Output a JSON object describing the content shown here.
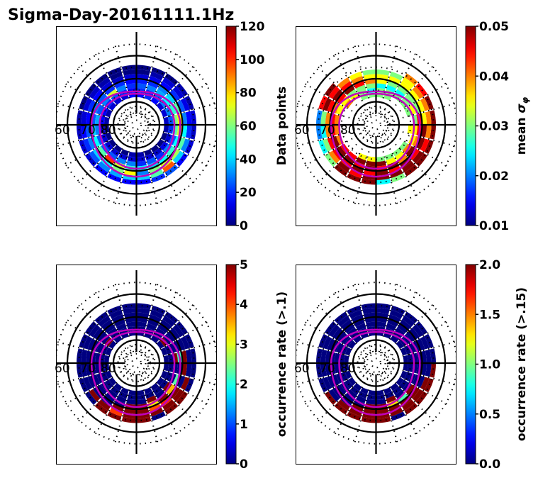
{
  "chart_data": {
    "type": "heatmap",
    "title": "Sigma-Day-20161111.1Hz",
    "projection": "polar (MLT vs magnetic latitude)",
    "grid": {
      "lat_circles_solid": [
        60,
        70,
        80
      ],
      "lat_circles_dotted": [
        55,
        65,
        75,
        85
      ],
      "lat_labels": [
        "60",
        "70",
        "80"
      ],
      "mlt_spokes_dotted_hours": 24
    },
    "mlt_bins": [
      0,
      1,
      2,
      3,
      4,
      5,
      6,
      7,
      8,
      9,
      10,
      11,
      12,
      13,
      14,
      15,
      16,
      17,
      18,
      19,
      20,
      21,
      22,
      23
    ],
    "lat_bins": [
      64,
      66,
      68,
      70,
      72,
      74,
      76
    ],
    "oval_contours": [
      {
        "name": "oval-inner",
        "color": "#bf00bf",
        "lat_at_mlt": {
          "0": 71,
          "6": 73.5,
          "12": 76.5,
          "18": 74
        }
      },
      {
        "name": "oval-outer",
        "color": "#bf00bf",
        "lat_at_mlt": {
          "0": 67.5,
          "6": 71,
          "12": 75.5,
          "18": 70.5
        }
      }
    ],
    "panels": [
      {
        "name": "data-points",
        "colorbar_label": "Data points",
        "vmin": 0,
        "vmax": 120,
        "ticks": [
          "0",
          "20",
          "40",
          "60",
          "80",
          "100",
          "120"
        ],
        "colormap": "jet",
        "values": [
          [
            15,
            40,
            30,
            45,
            20,
            10,
            5
          ],
          [
            20,
            55,
            60,
            40,
            25,
            10,
            0
          ],
          [
            25,
            95,
            70,
            45,
            20,
            8,
            0
          ],
          [
            15,
            40,
            65,
            50,
            30,
            12,
            0
          ],
          [
            10,
            30,
            55,
            45,
            25,
            10,
            0
          ],
          [
            8,
            20,
            45,
            70,
            55,
            20,
            5
          ],
          [
            10,
            15,
            30,
            75,
            60,
            25,
            8
          ],
          [
            5,
            12,
            25,
            55,
            50,
            30,
            10
          ],
          [
            5,
            10,
            20,
            40,
            45,
            30,
            10
          ],
          [
            0,
            10,
            15,
            30,
            35,
            25,
            15
          ],
          [
            0,
            5,
            12,
            20,
            30,
            20,
            20
          ],
          [
            0,
            0,
            10,
            18,
            25,
            20,
            15
          ],
          [
            0,
            0,
            10,
            15,
            20,
            15,
            15
          ],
          [
            0,
            0,
            8,
            20,
            30,
            20,
            10
          ],
          [
            0,
            5,
            10,
            20,
            70,
            25,
            10
          ],
          [
            0,
            8,
            15,
            25,
            30,
            20,
            10
          ],
          [
            0,
            10,
            20,
            30,
            25,
            15,
            5
          ],
          [
            5,
            10,
            15,
            25,
            35,
            15,
            5
          ],
          [
            8,
            15,
            25,
            40,
            30,
            10,
            0
          ],
          [
            10,
            20,
            30,
            45,
            25,
            10,
            0
          ],
          [
            10,
            25,
            40,
            55,
            25,
            10,
            0
          ],
          [
            15,
            30,
            45,
            100,
            25,
            10,
            0
          ],
          [
            15,
            35,
            60,
            70,
            30,
            10,
            0
          ],
          [
            15,
            40,
            75,
            50,
            30,
            10,
            5
          ]
        ]
      },
      {
        "name": "mean-sigma-phi",
        "colorbar_label": "mean σ_φ",
        "vmin": 0.01,
        "vmax": 0.05,
        "ticks": [
          "0.01",
          "0.02",
          "0.03",
          "0.04",
          "0.05"
        ],
        "colormap": "jet",
        "values": [
          [
            0.025,
            0.05,
            0.05,
            0.045,
            0.05,
            0.03,
            null
          ],
          [
            0.03,
            0.05,
            0.045,
            0.05,
            0.035,
            0.03,
            null
          ],
          [
            0.05,
            0.05,
            0.05,
            0.04,
            0.035,
            0.03,
            null
          ],
          [
            0.05,
            0.05,
            0.045,
            0.05,
            0.04,
            0.03,
            null
          ],
          [
            0.05,
            0.045,
            0.05,
            0.04,
            0.035,
            null,
            null
          ],
          [
            0.05,
            0.04,
            0.05,
            0.045,
            0.035,
            0.035,
            null
          ],
          [
            0.05,
            0.04,
            0.035,
            0.045,
            0.03,
            null,
            null
          ],
          [
            0.05,
            0.04,
            0.035,
            0.03,
            0.035,
            0.03,
            null
          ],
          [
            0.045,
            0.04,
            0.035,
            0.03,
            0.03,
            0.03,
            null
          ],
          [
            0.04,
            0.035,
            0.035,
            0.03,
            0.025,
            0.03,
            null
          ],
          [
            null,
            0.03,
            0.035,
            0.03,
            0.025,
            0.03,
            0.03
          ],
          [
            null,
            0.03,
            0.035,
            0.035,
            0.025,
            0.03,
            0.03
          ],
          [
            null,
            0.03,
            0.035,
            0.04,
            0.03,
            0.025,
            0.03
          ],
          [
            null,
            0.035,
            0.04,
            0.045,
            0.03,
            0.03,
            0.03
          ],
          [
            null,
            0.04,
            0.045,
            0.05,
            0.03,
            0.035,
            null
          ],
          [
            0.05,
            0.045,
            0.05,
            0.045,
            0.035,
            0.04,
            null
          ],
          [
            0.045,
            0.05,
            0.045,
            0.04,
            0.035,
            null,
            null
          ],
          [
            0.02,
            0.03,
            0.04,
            0.045,
            0.04,
            null,
            null
          ],
          [
            0.02,
            0.025,
            0.04,
            0.045,
            0.04,
            null,
            null
          ],
          [
            0.025,
            0.03,
            0.045,
            0.05,
            0.04,
            null,
            null
          ],
          [
            0.03,
            0.04,
            0.045,
            0.05,
            0.045,
            null,
            null
          ],
          [
            0.05,
            0.05,
            0.045,
            0.05,
            0.045,
            null,
            null
          ],
          [
            0.05,
            0.045,
            0.05,
            0.045,
            0.05,
            0.035,
            null
          ],
          [
            0.05,
            0.05,
            0.045,
            0.05,
            0.05,
            0.035,
            null
          ]
        ]
      },
      {
        "name": "occurrence-rate-0.1",
        "colorbar_label": "occurrence rate (>.1)",
        "vmin": 0,
        "vmax": 5,
        "ticks": [
          "0",
          "1",
          "2",
          "3",
          "4",
          "5"
        ],
        "colormap": "jet",
        "values": [
          [
            5,
            5,
            5,
            5,
            0,
            0,
            0
          ],
          [
            0,
            5,
            4,
            3.2,
            5,
            0,
            0
          ],
          [
            5,
            5,
            4.2,
            5,
            0,
            0,
            0
          ],
          [
            5,
            5,
            5,
            3.5,
            5,
            0,
            0
          ],
          [
            0,
            5,
            0,
            2.3,
            0,
            0,
            0
          ],
          [
            0,
            0,
            5,
            0,
            0,
            0,
            0
          ],
          [
            0,
            0,
            5,
            2.2,
            5,
            0,
            0
          ],
          [
            0,
            0,
            0,
            0,
            0,
            0,
            0
          ],
          [
            0,
            0,
            0,
            0,
            0,
            5,
            0
          ],
          [
            0,
            0,
            0,
            0,
            0,
            0,
            0
          ],
          [
            0,
            0,
            0,
            0,
            0,
            0,
            0
          ],
          [
            0,
            0,
            0,
            0,
            0,
            0,
            0
          ],
          [
            0,
            0,
            0,
            0,
            0,
            0,
            0
          ],
          [
            0,
            0,
            0,
            0,
            0,
            0,
            0
          ],
          [
            0,
            0,
            0,
            0,
            0,
            0,
            0
          ],
          [
            0,
            0,
            0,
            0,
            0,
            5,
            0
          ],
          [
            0,
            0,
            0,
            0,
            0,
            0,
            0
          ],
          [
            0,
            0,
            0,
            0,
            0,
            0,
            0
          ],
          [
            0,
            0,
            0,
            0,
            0,
            0,
            0
          ],
          [
            0,
            0,
            0,
            0,
            0,
            0,
            0
          ],
          [
            0,
            5,
            0,
            0,
            0,
            0,
            0
          ],
          [
            5,
            5,
            0,
            0,
            0,
            0,
            0
          ],
          [
            5,
            4.1,
            5,
            0,
            0,
            0,
            0
          ],
          [
            5,
            5,
            5,
            5,
            0,
            0,
            0
          ]
        ]
      },
      {
        "name": "occurrence-rate-0.15",
        "colorbar_label": "occurrence rate (>.15)",
        "vmin": 0,
        "vmax": 2,
        "ticks": [
          "0.0",
          "0.5",
          "1.0",
          "1.5",
          "2.0"
        ],
        "colormap": "jet",
        "values": [
          [
            2,
            2,
            2,
            2,
            0,
            0,
            0
          ],
          [
            0,
            2,
            2,
            1.3,
            2,
            0,
            0
          ],
          [
            2,
            2,
            2,
            0.9,
            0,
            0,
            0
          ],
          [
            2,
            2,
            2,
            2,
            0,
            0,
            0
          ],
          [
            2,
            2,
            0,
            0,
            0,
            0,
            0
          ],
          [
            2,
            0,
            0,
            0,
            0,
            0,
            0
          ],
          [
            0,
            0,
            0,
            0,
            0,
            0,
            0
          ],
          [
            0,
            0,
            0,
            0,
            0,
            0,
            0
          ],
          [
            0,
            0,
            0,
            0,
            0,
            0,
            0
          ],
          [
            0,
            0,
            0,
            0,
            0,
            0,
            0
          ],
          [
            0,
            0,
            0,
            0,
            0,
            0,
            0
          ],
          [
            0,
            0,
            0,
            0,
            0,
            0,
            0
          ],
          [
            0,
            0,
            0,
            0,
            0,
            0,
            0
          ],
          [
            0,
            0,
            0,
            0,
            0,
            0,
            0
          ],
          [
            0,
            0,
            0,
            0,
            0,
            0,
            0
          ],
          [
            0,
            0,
            0,
            0,
            0,
            0,
            0
          ],
          [
            0,
            0,
            0,
            0,
            0,
            0,
            0
          ],
          [
            0,
            0,
            0,
            0,
            0,
            0,
            0
          ],
          [
            0,
            0,
            0,
            0,
            0,
            0,
            0
          ],
          [
            0,
            0,
            0,
            0,
            0,
            0,
            0
          ],
          [
            2,
            0,
            0,
            0,
            0,
            0,
            0
          ],
          [
            2,
            2,
            0,
            0,
            0,
            0,
            0
          ],
          [
            2,
            2,
            2,
            0,
            0,
            0,
            0
          ],
          [
            2,
            2,
            2,
            2,
            0,
            0,
            0
          ]
        ]
      }
    ]
  }
}
